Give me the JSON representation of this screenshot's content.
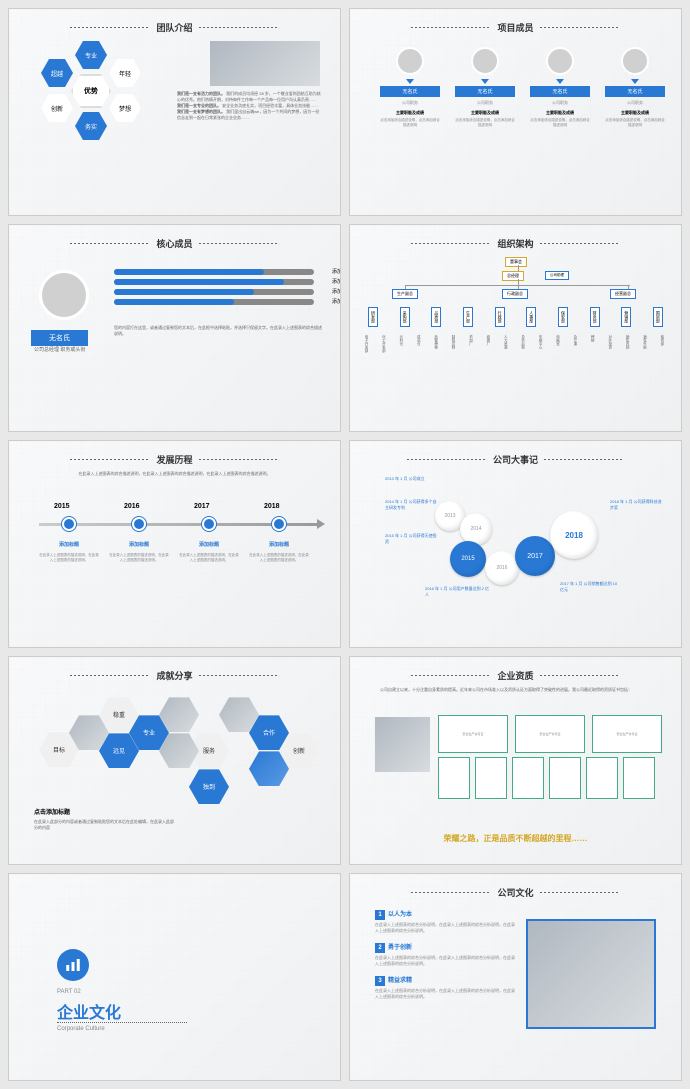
{
  "slides": {
    "s1": {
      "title": "团队介绍",
      "center": "优势",
      "hexes": [
        "专业",
        "年轻",
        "梦想",
        "务实",
        "创新",
        "超越"
      ],
      "body1": "我们是一支有活力的团队。",
      "body2": "我们是一支专业的团队。",
      "body3": "我们是一支有梦想的团队。"
    },
    "s2": {
      "title": "项目成员",
      "name": "无名氏",
      "role": "公司职务",
      "sub": "主要职能及成绩",
      "desc": "点击添加综合描述说明，点击添加综合描述说明"
    },
    "s3": {
      "title": "核心成员",
      "name": "无名氏",
      "role": "公司总经理  职务或头衔",
      "barLabel": "添加内容",
      "bars": [
        75,
        85,
        70,
        60
      ],
      "desc": "您的内容打在这里，或者通过复制您的文本后，在此框中选择粘贴，并选择只保留文字。在此录入上述图表的综合描述说明。"
    },
    "s4": {
      "title": "组织架构",
      "top1": "董事会",
      "top2": "总经理",
      "sub": "公司助理",
      "vps": [
        "生产副总",
        "行政副总",
        "经营副总"
      ],
      "depts": [
        "研发部",
        "采购部",
        "品质部",
        "生产部",
        "行政部",
        "人事部",
        "保安部",
        "财务部",
        "营销部",
        "国贸部"
      ],
      "leaves": [
        "电子开发部",
        "化工开发部",
        "元料仓",
        "成品仓",
        "品管稽核",
        "制程控制",
        "机加厂",
        "组装厂",
        "人力资源",
        "总务后勤",
        "车辆中心",
        "电脑室",
        "会计课",
        "稽核",
        "对外投资",
        "销售内勤",
        "销售外部",
        "船务部"
      ]
    },
    "s5": {
      "title": "发展历程",
      "intro": "在此录入上述图表的综合描述说明，在此录入上述图表的综合描述说明，在此录入上述图表的综合描述说明。",
      "years": [
        "2015",
        "2016",
        "2017",
        "2018"
      ],
      "itemTitle": "添加标题",
      "itemDesc": "在此录入上述图表的描述说明，在此录入上述图表的描述说明。"
    },
    "s6": {
      "title": "公司大事记",
      "bubbles": [
        "2013",
        "2014",
        "2015",
        "2016",
        "2017",
        "2018"
      ],
      "events": {
        "e1": "2013 年 1 月  公司成立",
        "e2": "2014 年 1 月  公司获得多个自主研发专利",
        "e3": "2015 年 1 月  公司获得天使投资",
        "e4": "2016 年 1 月  公司用户数量达到 2 亿人",
        "e5": "2017 年 1 月  公司销售额达到 10 亿元",
        "e6": "2018 年 1 月  公司获得科技进步奖"
      }
    },
    "s7": {
      "title": "成就分享",
      "hexes": [
        "目标",
        "稳重",
        "专业",
        "远见",
        "服务",
        "独到",
        "合作",
        "创新"
      ],
      "addTitle": "点击添加标题",
      "desc": "在此录入此部分的内容或者通过复制粘贴您的文本后在此处编辑，在此录入此部分的内容"
    },
    "s8": {
      "title": "企业资质",
      "intro": "公司自建立以来，十分注重自身素质的提高。近年来公司在市场准入以及资质认证方面取得了突破性的进展。我公司最近取得的资质证书包括：",
      "certName": "安全生产许可证",
      "slogan": "荣耀之路，正是品质不断超越的里程……"
    },
    "s9": {
      "part": "PART 02",
      "title": "企业文化",
      "en": "Corporate Culture"
    },
    "s10": {
      "title": "公司文化",
      "items": [
        "以人为本",
        "勇于创新",
        "精益求精"
      ],
      "nums": [
        "1",
        "2",
        "3"
      ],
      "desc": "在此录入上述图表的综合分析说明，在此录入上述图表的综合分析说明，在此录入上述图表的综合分析说明。"
    }
  }
}
